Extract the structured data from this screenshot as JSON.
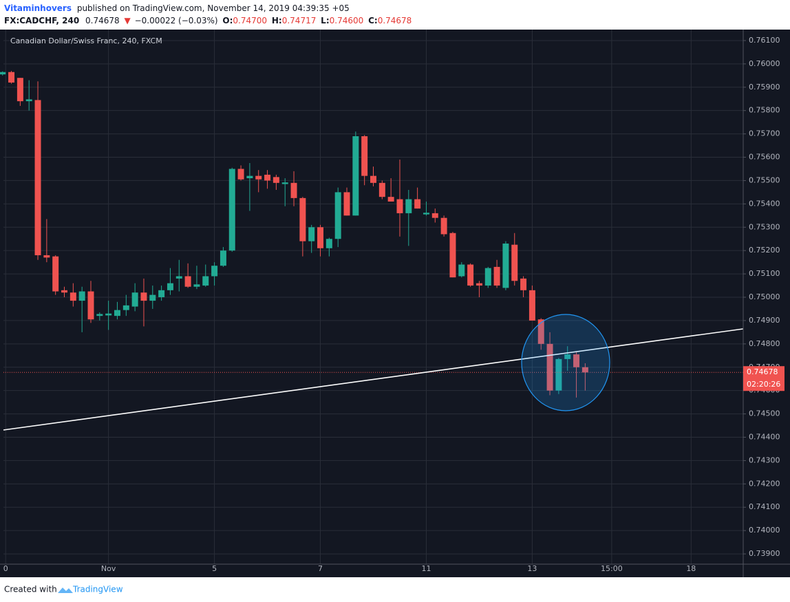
{
  "header": {
    "author": "Vitaminhovers",
    "published": "published on TradingView.com, November 14, 2019 04:39:35 +05",
    "symbol": "FX:CADCHF, 240",
    "last": "0.74678",
    "arrow": "▼",
    "change": "−0.00022 (−0.03%)",
    "open_label": "O:",
    "open": "0.74700",
    "high_label": "H:",
    "high": "0.74717",
    "low_label": "L:",
    "low": "0.74600",
    "close_label": "C:",
    "close": "0.74678"
  },
  "footer": {
    "created": "Created with",
    "brand": "TradingView"
  },
  "chart_data": {
    "type": "candlestick",
    "title": "Canadian Dollar/Swiss Franc, 240, FXCM",
    "up_color": "#22ab94",
    "down_color": "#f05350",
    "grid": true,
    "open": [
      0.75955,
      0.75965,
      0.7594,
      0.7584,
      0.75845,
      0.7518,
      0.75175,
      0.7503,
      0.7502,
      0.74985,
      0.75025,
      0.7492,
      0.74922,
      0.7492,
      0.74945,
      0.7496,
      0.7502,
      0.74985,
      0.75,
      0.7503,
      0.7508,
      0.7509,
      0.75045,
      0.7505,
      0.7509,
      0.75135,
      0.752,
      0.7555,
      0.7551,
      0.7552,
      0.75525,
      0.75515,
      0.75485,
      0.7549,
      0.75425,
      0.7524,
      0.753,
      0.7521,
      0.7525,
      0.7545,
      0.7535,
      0.7569,
      0.7552,
      0.7549,
      0.7543,
      0.7542,
      0.7536,
      0.7542,
      0.75355,
      0.7536,
      0.7534,
      0.75275,
      0.7509,
      0.7514,
      0.7506,
      0.7505,
      0.7513,
      0.7504,
      0.75225,
      0.7508,
      0.7503,
      0.74905,
      0.748,
      0.746,
      0.74735,
      0.74755,
      0.747
    ],
    "high": [
      0.75968,
      0.7597,
      0.7594,
      0.7593,
      0.75925,
      0.75335,
      0.7518,
      0.75045,
      0.7506,
      0.75045,
      0.7507,
      0.74935,
      0.74985,
      0.7498,
      0.7501,
      0.7506,
      0.7508,
      0.7505,
      0.7505,
      0.75125,
      0.7516,
      0.75145,
      0.75135,
      0.7514,
      0.7515,
      0.75215,
      0.75555,
      0.75565,
      0.75575,
      0.75545,
      0.75545,
      0.75525,
      0.7551,
      0.7554,
      0.7543,
      0.7531,
      0.7531,
      0.75255,
      0.7547,
      0.7547,
      0.7571,
      0.75695,
      0.7556,
      0.755,
      0.7551,
      0.7559,
      0.7546,
      0.7547,
      0.7541,
      0.7538,
      0.7535,
      0.7528,
      0.7515,
      0.75145,
      0.7507,
      0.7513,
      0.7516,
      0.7524,
      0.75275,
      0.7509,
      0.7505,
      0.7491,
      0.7485,
      0.7474,
      0.7479,
      0.74765,
      0.74717
    ],
    "low": [
      0.7595,
      0.75915,
      0.7582,
      0.758,
      0.7516,
      0.7515,
      0.7501,
      0.75,
      0.7496,
      0.7485,
      0.7489,
      0.749,
      0.7486,
      0.74905,
      0.7492,
      0.7494,
      0.74875,
      0.7495,
      0.74985,
      0.7501,
      0.75025,
      0.7504,
      0.75035,
      0.75045,
      0.7505,
      0.7513,
      0.75195,
      0.755,
      0.7537,
      0.7545,
      0.75465,
      0.7546,
      0.7539,
      0.7539,
      0.75175,
      0.7519,
      0.75175,
      0.75175,
      0.75215,
      0.7535,
      0.7535,
      0.7548,
      0.75475,
      0.7542,
      0.7541,
      0.7526,
      0.7522,
      0.7538,
      0.7535,
      0.7532,
      0.7526,
      0.75085,
      0.75085,
      0.75045,
      0.75,
      0.7504,
      0.7504,
      0.7503,
      0.7505,
      0.75,
      0.749,
      0.74775,
      0.7458,
      0.74585,
      0.74685,
      0.7457,
      0.746
    ],
    "close": [
      0.75965,
      0.7592,
      0.7584,
      0.75848,
      0.7518,
      0.7517,
      0.75025,
      0.7502,
      0.74985,
      0.75025,
      0.74905,
      0.74928,
      0.7493,
      0.74945,
      0.74965,
      0.7502,
      0.74985,
      0.7501,
      0.7503,
      0.7506,
      0.7509,
      0.75045,
      0.75055,
      0.7509,
      0.75135,
      0.752,
      0.7555,
      0.75505,
      0.7552,
      0.75505,
      0.755,
      0.7549,
      0.75492,
      0.75425,
      0.7524,
      0.753,
      0.7521,
      0.7525,
      0.7545,
      0.7535,
      0.7569,
      0.7552,
      0.7549,
      0.7543,
      0.7541,
      0.7536,
      0.7542,
      0.7538,
      0.75362,
      0.7534,
      0.7527,
      0.75085,
      0.7514,
      0.7505,
      0.7505,
      0.75125,
      0.7505,
      0.7523,
      0.7507,
      0.7503,
      0.749,
      0.748,
      0.746,
      0.74735,
      0.74755,
      0.747,
      0.74678
    ],
    "last_price": 0.74678,
    "countdown": "02:20:26",
    "xlim": [
      0.1,
      83.9
    ],
    "xticks": [
      {
        "value": 0.35,
        "label": "0"
      },
      {
        "value": 12,
        "label": "Nov"
      },
      {
        "value": 24,
        "label": "5"
      },
      {
        "value": 36,
        "label": "7"
      },
      {
        "value": 48,
        "label": "11"
      },
      {
        "value": 60,
        "label": "13"
      },
      {
        "value": 69,
        "label": "15:00"
      },
      {
        "value": 78,
        "label": "18"
      }
    ],
    "ylim": [
      0.73856,
      0.76147
    ],
    "yticks": [
      {
        "value": 0.761,
        "label": "0.76100"
      },
      {
        "value": 0.76,
        "label": "0.76000"
      },
      {
        "value": 0.759,
        "label": "0.75900"
      },
      {
        "value": 0.758,
        "label": "0.75800"
      },
      {
        "value": 0.757,
        "label": "0.75700"
      },
      {
        "value": 0.756,
        "label": "0.75600"
      },
      {
        "value": 0.755,
        "label": "0.75500"
      },
      {
        "value": 0.754,
        "label": "0.75400"
      },
      {
        "value": 0.753,
        "label": "0.75300"
      },
      {
        "value": 0.752,
        "label": "0.75200"
      },
      {
        "value": 0.751,
        "label": "0.75100"
      },
      {
        "value": 0.75,
        "label": "0.75000"
      },
      {
        "value": 0.749,
        "label": "0.74900"
      },
      {
        "value": 0.748,
        "label": "0.74800"
      },
      {
        "value": 0.747,
        "label": "0.74700"
      },
      {
        "value": 0.746,
        "label": "0.74600"
      },
      {
        "value": 0.745,
        "label": "0.74500"
      },
      {
        "value": 0.744,
        "label": "0.74400"
      },
      {
        "value": 0.743,
        "label": "0.74300"
      },
      {
        "value": 0.742,
        "label": "0.74200"
      },
      {
        "value": 0.741,
        "label": "0.74100"
      },
      {
        "value": 0.74,
        "label": "0.74000"
      },
      {
        "value": 0.739,
        "label": "0.73900"
      }
    ]
  }
}
